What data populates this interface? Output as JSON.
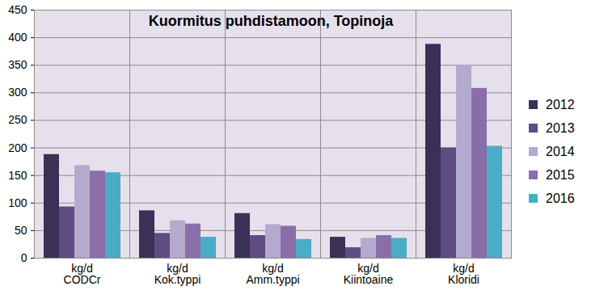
{
  "chart_data": {
    "type": "bar",
    "title": "Kuormitus puhdistamoon, Topinoja",
    "categories": [
      "CODCr",
      "Kok.typpi",
      "Amm.typpi",
      "Kiintoaine",
      "Kloridi"
    ],
    "units": [
      "kg/d",
      "kg/d",
      "kg/d",
      "kg/d",
      "kg/d"
    ],
    "series": [
      {
        "name": "2012",
        "color": "#3b3156",
        "values": [
          188,
          86,
          81,
          38,
          388
        ]
      },
      {
        "name": "2013",
        "color": "#5f4c82",
        "values": [
          93,
          45,
          41,
          19,
          200
        ]
      },
      {
        "name": "2014",
        "color": "#b4aacd",
        "values": [
          168,
          68,
          61,
          36,
          350
        ]
      },
      {
        "name": "2015",
        "color": "#8a6ea9",
        "values": [
          158,
          62,
          58,
          41,
          308
        ]
      },
      {
        "name": "2016",
        "color": "#4bacc6",
        "values": [
          155,
          38,
          34,
          36,
          203
        ]
      }
    ],
    "ylim": [
      0,
      450
    ],
    "yticks": [
      0,
      50,
      100,
      150,
      200,
      250,
      300,
      350,
      400,
      450
    ],
    "grid": true,
    "legend": "right"
  }
}
